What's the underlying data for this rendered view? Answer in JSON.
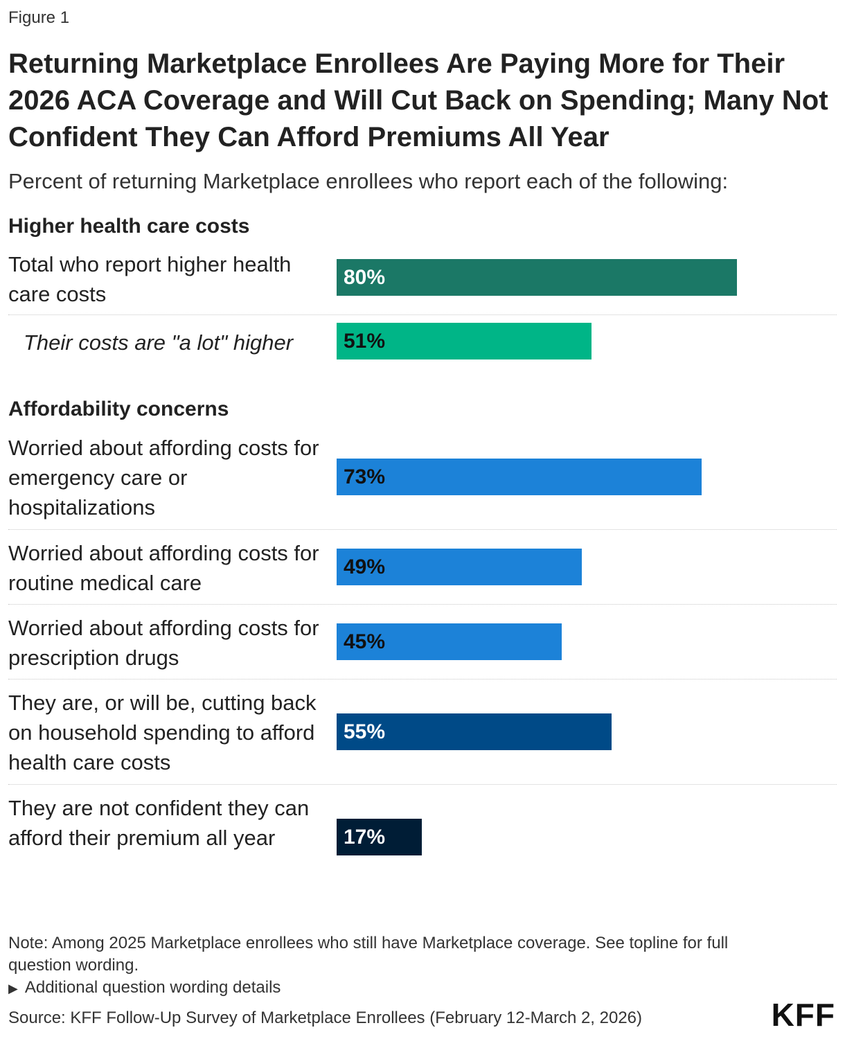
{
  "figure_label": "Figure 1",
  "title": "Returning Marketplace Enrollees Are Paying More for Their 2026 ACA Coverage and Will Cut Back on Spending; Many Not Confident They Can Afford Premiums All Year",
  "subtitle": "Percent of returning Marketplace enrollees who report each of the following:",
  "groups": [
    {
      "heading": "Higher health care costs"
    },
    {
      "heading": "Affordability concerns"
    }
  ],
  "note": "Note: Among 2025 Marketplace enrollees who still have Marketplace coverage. See topline for full question wording.",
  "details_toggle": "Additional question wording details",
  "source": "Source: KFF Follow-Up Survey of Marketplace Enrollees (February 12-March 2, 2026)",
  "logo_text": "KFF",
  "chart_data": {
    "type": "bar",
    "orientation": "horizontal",
    "xlim": [
      0,
      100
    ],
    "unit": "%",
    "categories": [
      "Total who report higher health care costs",
      "Their costs are \"a lot\" higher",
      "Worried about affording costs for emergency care or hospitalizations",
      "Worried about affording costs for routine medical care",
      "Worried about affording costs for prescription drugs",
      "They are, or will be, cutting back on household spending to afford health care costs",
      "They are not confident they can afford their premium all year"
    ],
    "values": [
      80,
      51,
      73,
      49,
      45,
      55,
      17
    ],
    "value_labels": [
      "80%",
      "51%",
      "73%",
      "49%",
      "45%",
      "55%",
      "17%"
    ],
    "group_of_category": [
      0,
      0,
      1,
      1,
      1,
      1,
      1
    ],
    "colors": [
      "#1b7866",
      "#00b587",
      "#1c82d8",
      "#1c82d8",
      "#1c82d8",
      "#004a87",
      "#001d36"
    ],
    "label_colors": [
      "#ffffff",
      "#111111",
      "#111111",
      "#111111",
      "#111111",
      "#ffffff",
      "#ffffff"
    ]
  }
}
